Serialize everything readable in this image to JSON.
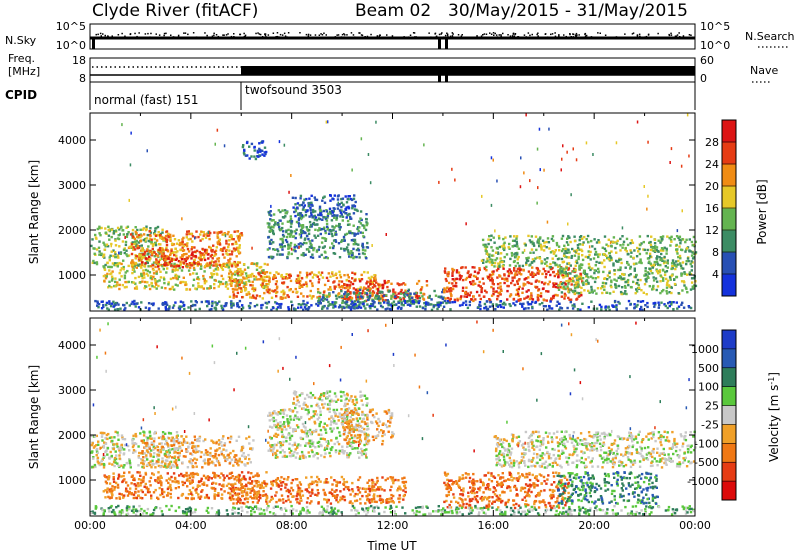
{
  "header": {
    "station": "Clyde River (fitACF)",
    "beam": "Beam 02",
    "date_range": "30/May/2015 - 31/May/2015"
  },
  "status_panels": {
    "nsky_label": "N.Sky",
    "nsky_ticks": [
      "10^5",
      "10^0"
    ],
    "nsearch_label": "N.Search",
    "nsearch_ticks": [
      "10^5",
      "10^0"
    ],
    "freq_label": "Freq.",
    "freq_unit": "[MHz]",
    "freq_ticks": [
      "18",
      "8"
    ],
    "nave_label": "Nave",
    "nave_ticks": [
      "60",
      "0"
    ],
    "cpid_label": "CPID",
    "cpid_modes": [
      {
        "name": "normal (fast) 151",
        "start_hour": 0,
        "end_hour": 6
      },
      {
        "name": "twofsound 3503",
        "start_hour": 6,
        "end_hour": 24
      }
    ]
  },
  "chart_data": [
    {
      "type": "heatmap",
      "quantity": "power",
      "ylabel": "Slant Range [km]",
      "xlim": [
        0,
        24
      ],
      "ylim": [
        200,
        4600
      ],
      "yticks": [
        "1000",
        "2000",
        "3000",
        "4000"
      ],
      "colorbar": {
        "label": "Power [dB]",
        "ticks": [
          "4",
          "8",
          "12",
          "16",
          "20",
          "24",
          "28"
        ],
        "colors": [
          "#1432dc",
          "#2850b4",
          "#3c8c64",
          "#64b450",
          "#e6c828",
          "#f08c14",
          "#e63c14",
          "#dc1414"
        ]
      },
      "bands": [
        {
          "x0": 0.0,
          "x1": 3.0,
          "y0": 1200,
          "y1": 2100,
          "level": 3
        },
        {
          "x0": 1.5,
          "x1": 6.0,
          "y0": 1200,
          "y1": 2000,
          "level": 5
        },
        {
          "x0": 0.5,
          "x1": 7.0,
          "y0": 700,
          "y1": 1300,
          "level": 4
        },
        {
          "x0": 2.0,
          "x1": 5.0,
          "y0": 1200,
          "y1": 1600,
          "level": 6
        },
        {
          "x0": 5.5,
          "x1": 11.5,
          "y0": 500,
          "y1": 1100,
          "level": 5
        },
        {
          "x0": 7.0,
          "x1": 11.0,
          "y0": 1400,
          "y1": 2500,
          "level": 2
        },
        {
          "x0": 8.0,
          "x1": 10.5,
          "y0": 2300,
          "y1": 2800,
          "level": 1
        },
        {
          "x0": 6.0,
          "x1": 7.0,
          "y0": 3600,
          "y1": 4000,
          "level": 1
        },
        {
          "x0": 10.0,
          "x1": 13.5,
          "y0": 450,
          "y1": 900,
          "level": 6
        },
        {
          "x0": 9.0,
          "x1": 14.0,
          "y0": 300,
          "y1": 700,
          "level": 2
        },
        {
          "x0": 14.0,
          "x1": 19.5,
          "y0": 450,
          "y1": 1200,
          "level": 6
        },
        {
          "x0": 15.5,
          "x1": 24.0,
          "y0": 1200,
          "y1": 1900,
          "level": 3
        },
        {
          "x0": 18.5,
          "x1": 24.0,
          "y0": 600,
          "y1": 1200,
          "level": 3
        },
        {
          "x0": 0.0,
          "x1": 24.0,
          "y0": 250,
          "y1": 450,
          "level": 1
        }
      ]
    },
    {
      "type": "heatmap",
      "quantity": "velocity",
      "ylabel": "Slant Range [km]",
      "xlabel": "Time UT",
      "xlim": [
        0,
        24
      ],
      "ylim": [
        200,
        4600
      ],
      "xticks": [
        "00:00",
        "04:00",
        "08:00",
        "12:00",
        "16:00",
        "20:00",
        "00:00"
      ],
      "yticks": [
        "1000",
        "2000",
        "3000",
        "4000"
      ],
      "colorbar": {
        "label": "Velocity [m s^-1]",
        "ticks": [
          "1000",
          "500",
          "100",
          "25",
          "-25",
          "-100",
          "-500",
          "-1000"
        ],
        "colors": [
          "#1e3cc8",
          "#285ab4",
          "#2e7d5a",
          "#5ac83c",
          "#c8c8c8",
          "#f0a028",
          "#f07814",
          "#e63c14",
          "#dc0a0a"
        ]
      },
      "bands": [
        {
          "x0": 0.0,
          "x1": 3.5,
          "y0": 1300,
          "y1": 2100,
          "level": 4
        },
        {
          "x0": 2.0,
          "x1": 6.5,
          "y0": 1300,
          "y1": 2000,
          "level": 5
        },
        {
          "x0": 0.5,
          "x1": 7.0,
          "y0": 600,
          "y1": 1200,
          "level": 6
        },
        {
          "x0": 5.5,
          "x1": 12.5,
          "y0": 500,
          "y1": 1100,
          "level": 6
        },
        {
          "x0": 7.0,
          "x1": 11.0,
          "y0": 1500,
          "y1": 2600,
          "level": 4
        },
        {
          "x0": 8.0,
          "x1": 11.0,
          "y0": 2600,
          "y1": 3000,
          "level": 4
        },
        {
          "x0": 10.0,
          "x1": 12.0,
          "y0": 1800,
          "y1": 2600,
          "level": 5
        },
        {
          "x0": 14.0,
          "x1": 19.0,
          "y0": 400,
          "y1": 1200,
          "level": 6
        },
        {
          "x0": 18.5,
          "x1": 22.5,
          "y0": 500,
          "y1": 1200,
          "level": 2
        },
        {
          "x0": 16.0,
          "x1": 24.0,
          "y0": 1300,
          "y1": 2100,
          "level": 4
        },
        {
          "x0": 0.0,
          "x1": 24.0,
          "y0": 250,
          "y1": 450,
          "level": 3
        }
      ]
    }
  ]
}
